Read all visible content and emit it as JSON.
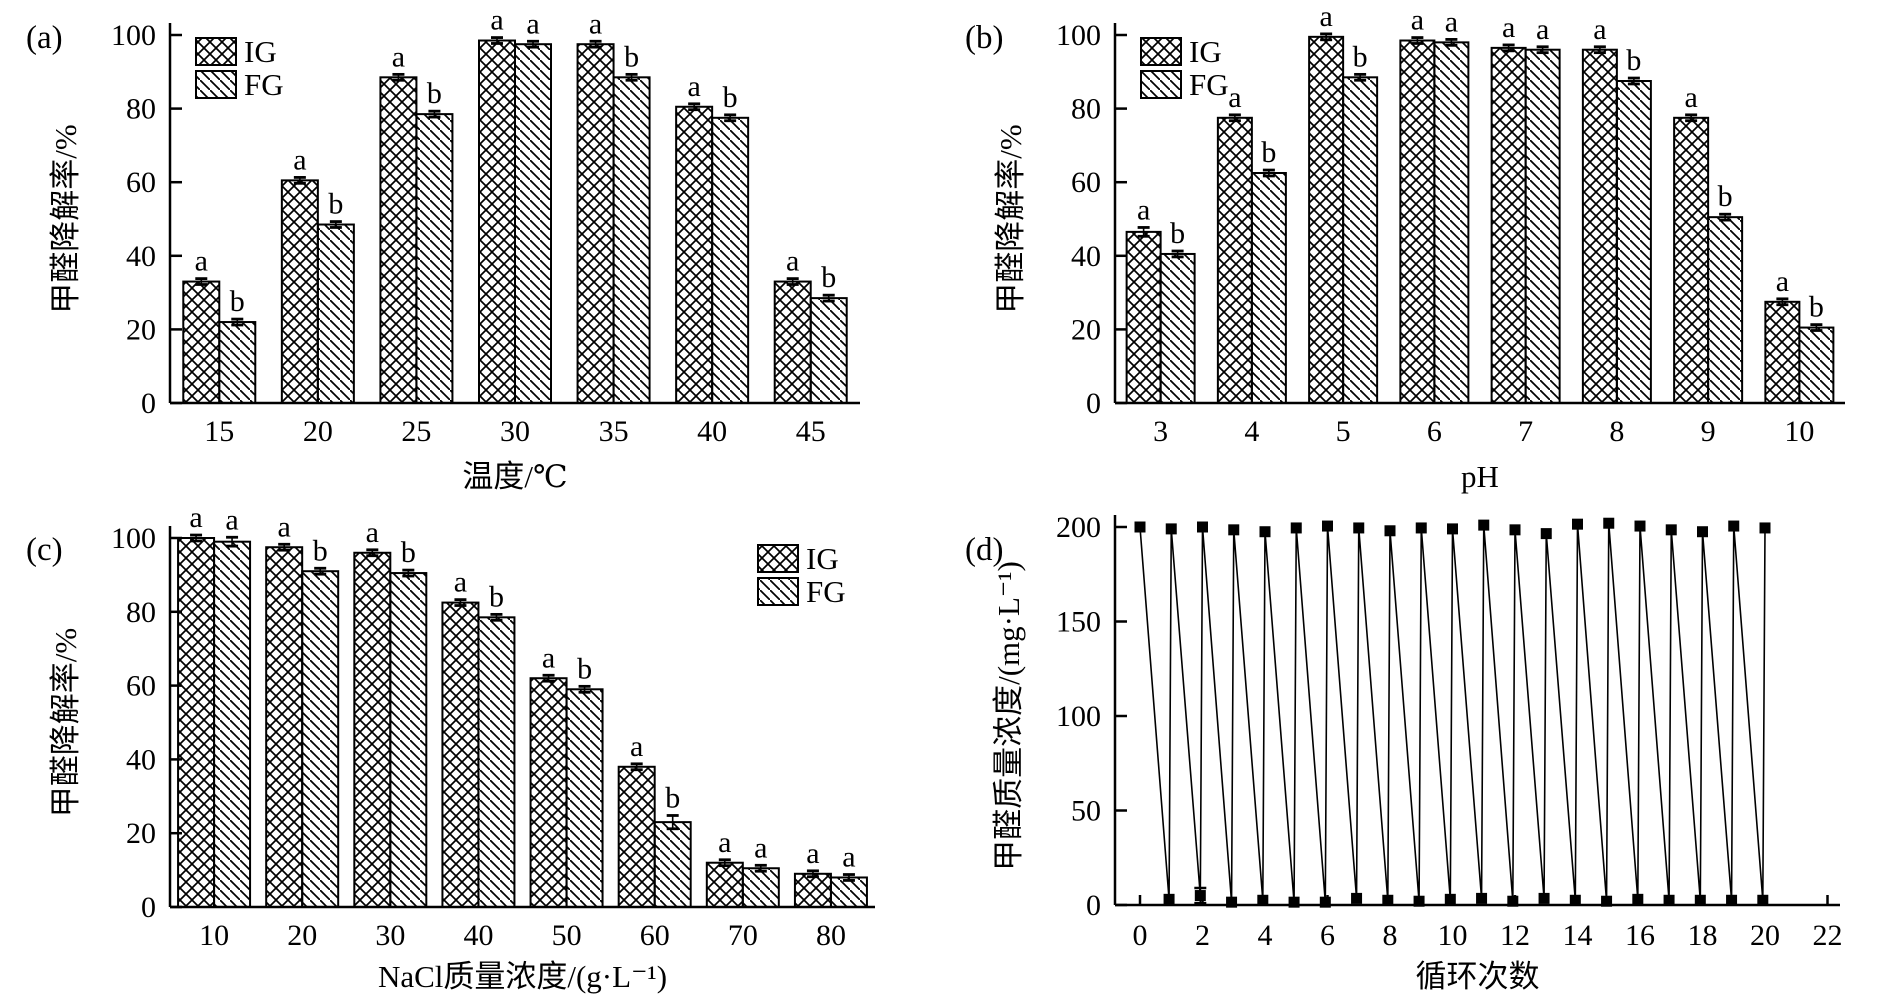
{
  "figure": {
    "background": "#ffffff",
    "ink_color": "#000000",
    "legend_items": [
      {
        "label": "IG",
        "pattern": "crosshatch"
      },
      {
        "label": "FG",
        "pattern": "diagonal"
      }
    ]
  },
  "chart_data": [
    {
      "id": "a",
      "panel_label": "(a)",
      "type": "bar",
      "title": "",
      "xlabel": "温度/℃",
      "ylabel": "甲醛降解率/%",
      "categories": [
        "15",
        "20",
        "25",
        "30",
        "35",
        "40",
        "45"
      ],
      "series": [
        {
          "name": "IG",
          "pattern": "crosshatch",
          "values": [
            33,
            60.5,
            88.5,
            98.5,
            97.5,
            80.5,
            33
          ],
          "errors": [
            0.8,
            0.8,
            0.8,
            0.8,
            0.8,
            0.8,
            0.8
          ],
          "letters": [
            "a",
            "a",
            "a",
            "a",
            "a",
            "a",
            "a"
          ]
        },
        {
          "name": "FG",
          "pattern": "diagonal",
          "values": [
            22,
            48.5,
            78.5,
            97.5,
            88.5,
            77.5,
            28.5
          ],
          "errors": [
            0.8,
            0.8,
            0.8,
            0.8,
            0.8,
            0.8,
            0.8
          ],
          "letters": [
            "b",
            "b",
            "b",
            "a",
            "b",
            "b",
            "b"
          ]
        }
      ],
      "ylim": [
        0,
        100
      ],
      "yticks": [
        0,
        20,
        40,
        60,
        80,
        100
      ],
      "grid": false,
      "legend_position": "top-left"
    },
    {
      "id": "b",
      "panel_label": "(b)",
      "type": "bar",
      "title": "",
      "xlabel": "pH",
      "ylabel": "甲醛降解率/%",
      "categories": [
        "3",
        "4",
        "5",
        "6",
        "7",
        "8",
        "9",
        "10"
      ],
      "series": [
        {
          "name": "IG",
          "pattern": "crosshatch",
          "values": [
            46.5,
            77.5,
            99.5,
            98.5,
            96.5,
            96,
            77.5,
            27.5
          ],
          "errors": [
            1.2,
            0.8,
            0.8,
            0.8,
            0.8,
            0.8,
            0.8,
            0.8
          ],
          "letters": [
            "a",
            "a",
            "a",
            "a",
            "a",
            "a",
            "a",
            "a"
          ]
        },
        {
          "name": "FG",
          "pattern": "diagonal",
          "values": [
            40.5,
            62.5,
            88.5,
            98,
            96,
            87.5,
            50.5,
            20.5
          ],
          "errors": [
            0.8,
            0.8,
            0.8,
            0.8,
            0.8,
            0.8,
            0.8,
            0.8
          ],
          "letters": [
            "b",
            "b",
            "b",
            "a",
            "a",
            "b",
            "b",
            "b"
          ]
        }
      ],
      "ylim": [
        0,
        100
      ],
      "yticks": [
        0,
        20,
        40,
        60,
        80,
        100
      ],
      "grid": false,
      "legend_position": "top-left"
    },
    {
      "id": "c",
      "panel_label": "(c)",
      "type": "bar",
      "title": "",
      "xlabel": "NaCl质量浓度/(g·L⁻¹)",
      "ylabel": "甲醛降解率/%",
      "categories": [
        "10",
        "20",
        "30",
        "40",
        "50",
        "60",
        "70",
        "80"
      ],
      "series": [
        {
          "name": "IG",
          "pattern": "crosshatch",
          "values": [
            100,
            97.5,
            96,
            82.5,
            62,
            38,
            12,
            9
          ],
          "errors": [
            0.8,
            0.8,
            0.8,
            0.8,
            0.8,
            0.8,
            0.8,
            0.8
          ],
          "letters": [
            "a",
            "a",
            "a",
            "a",
            "a",
            "a",
            "a",
            "a"
          ]
        },
        {
          "name": "FG",
          "pattern": "diagonal",
          "values": [
            99,
            91,
            90.5,
            78.5,
            59,
            23,
            10.5,
            8
          ],
          "errors": [
            1.2,
            0.8,
            0.8,
            0.8,
            0.8,
            1.8,
            0.8,
            0.8
          ],
          "letters": [
            "a",
            "b",
            "b",
            "b",
            "b",
            "b",
            "a",
            "a"
          ]
        }
      ],
      "ylim": [
        0,
        100
      ],
      "yticks": [
        0,
        20,
        40,
        60,
        80,
        100
      ],
      "grid": false,
      "legend_position": "top-right"
    },
    {
      "id": "d",
      "panel_label": "(d)",
      "type": "line",
      "title": "",
      "xlabel": "循环次数",
      "ylabel": "甲醛质量浓度/(mg·L⁻¹)",
      "xlim": [
        -0.8,
        22.4
      ],
      "xticks": [
        0,
        2,
        4,
        6,
        8,
        10,
        12,
        14,
        16,
        18,
        20,
        22
      ],
      "ylim": [
        0,
        206
      ],
      "yticks": [
        0,
        50,
        100,
        150,
        200
      ],
      "marker": "square",
      "tops": [
        [
          0,
          200
        ],
        [
          1,
          199
        ],
        [
          2,
          200
        ],
        [
          3,
          198.5
        ],
        [
          4,
          197.5
        ],
        [
          5,
          199.5
        ],
        [
          6,
          200.5
        ],
        [
          7,
          199.5
        ],
        [
          8,
          198
        ],
        [
          9,
          199.5
        ],
        [
          10,
          199
        ],
        [
          11,
          201
        ],
        [
          12,
          198.5
        ],
        [
          13,
          196.5
        ],
        [
          14,
          201.5
        ],
        [
          15,
          202
        ],
        [
          16,
          200.5
        ],
        [
          17,
          198.5
        ],
        [
          18,
          197.5
        ],
        [
          19,
          200.5
        ],
        [
          20,
          199.5
        ]
      ],
      "bottoms": [
        [
          1,
          3
        ],
        [
          2,
          5,
          4
        ],
        [
          3,
          1.5
        ],
        [
          4,
          2.5
        ],
        [
          5,
          1.5
        ],
        [
          6,
          1.5
        ],
        [
          7,
          3.5
        ],
        [
          8,
          2.5
        ],
        [
          9,
          2
        ],
        [
          10,
          3
        ],
        [
          11,
          3.5
        ],
        [
          12,
          2
        ],
        [
          13,
          3.5
        ],
        [
          14,
          2.5
        ],
        [
          15,
          2
        ],
        [
          16,
          3
        ],
        [
          17,
          2.5
        ],
        [
          18,
          2.5
        ],
        [
          19,
          2.5
        ],
        [
          20,
          2.5
        ]
      ]
    }
  ]
}
